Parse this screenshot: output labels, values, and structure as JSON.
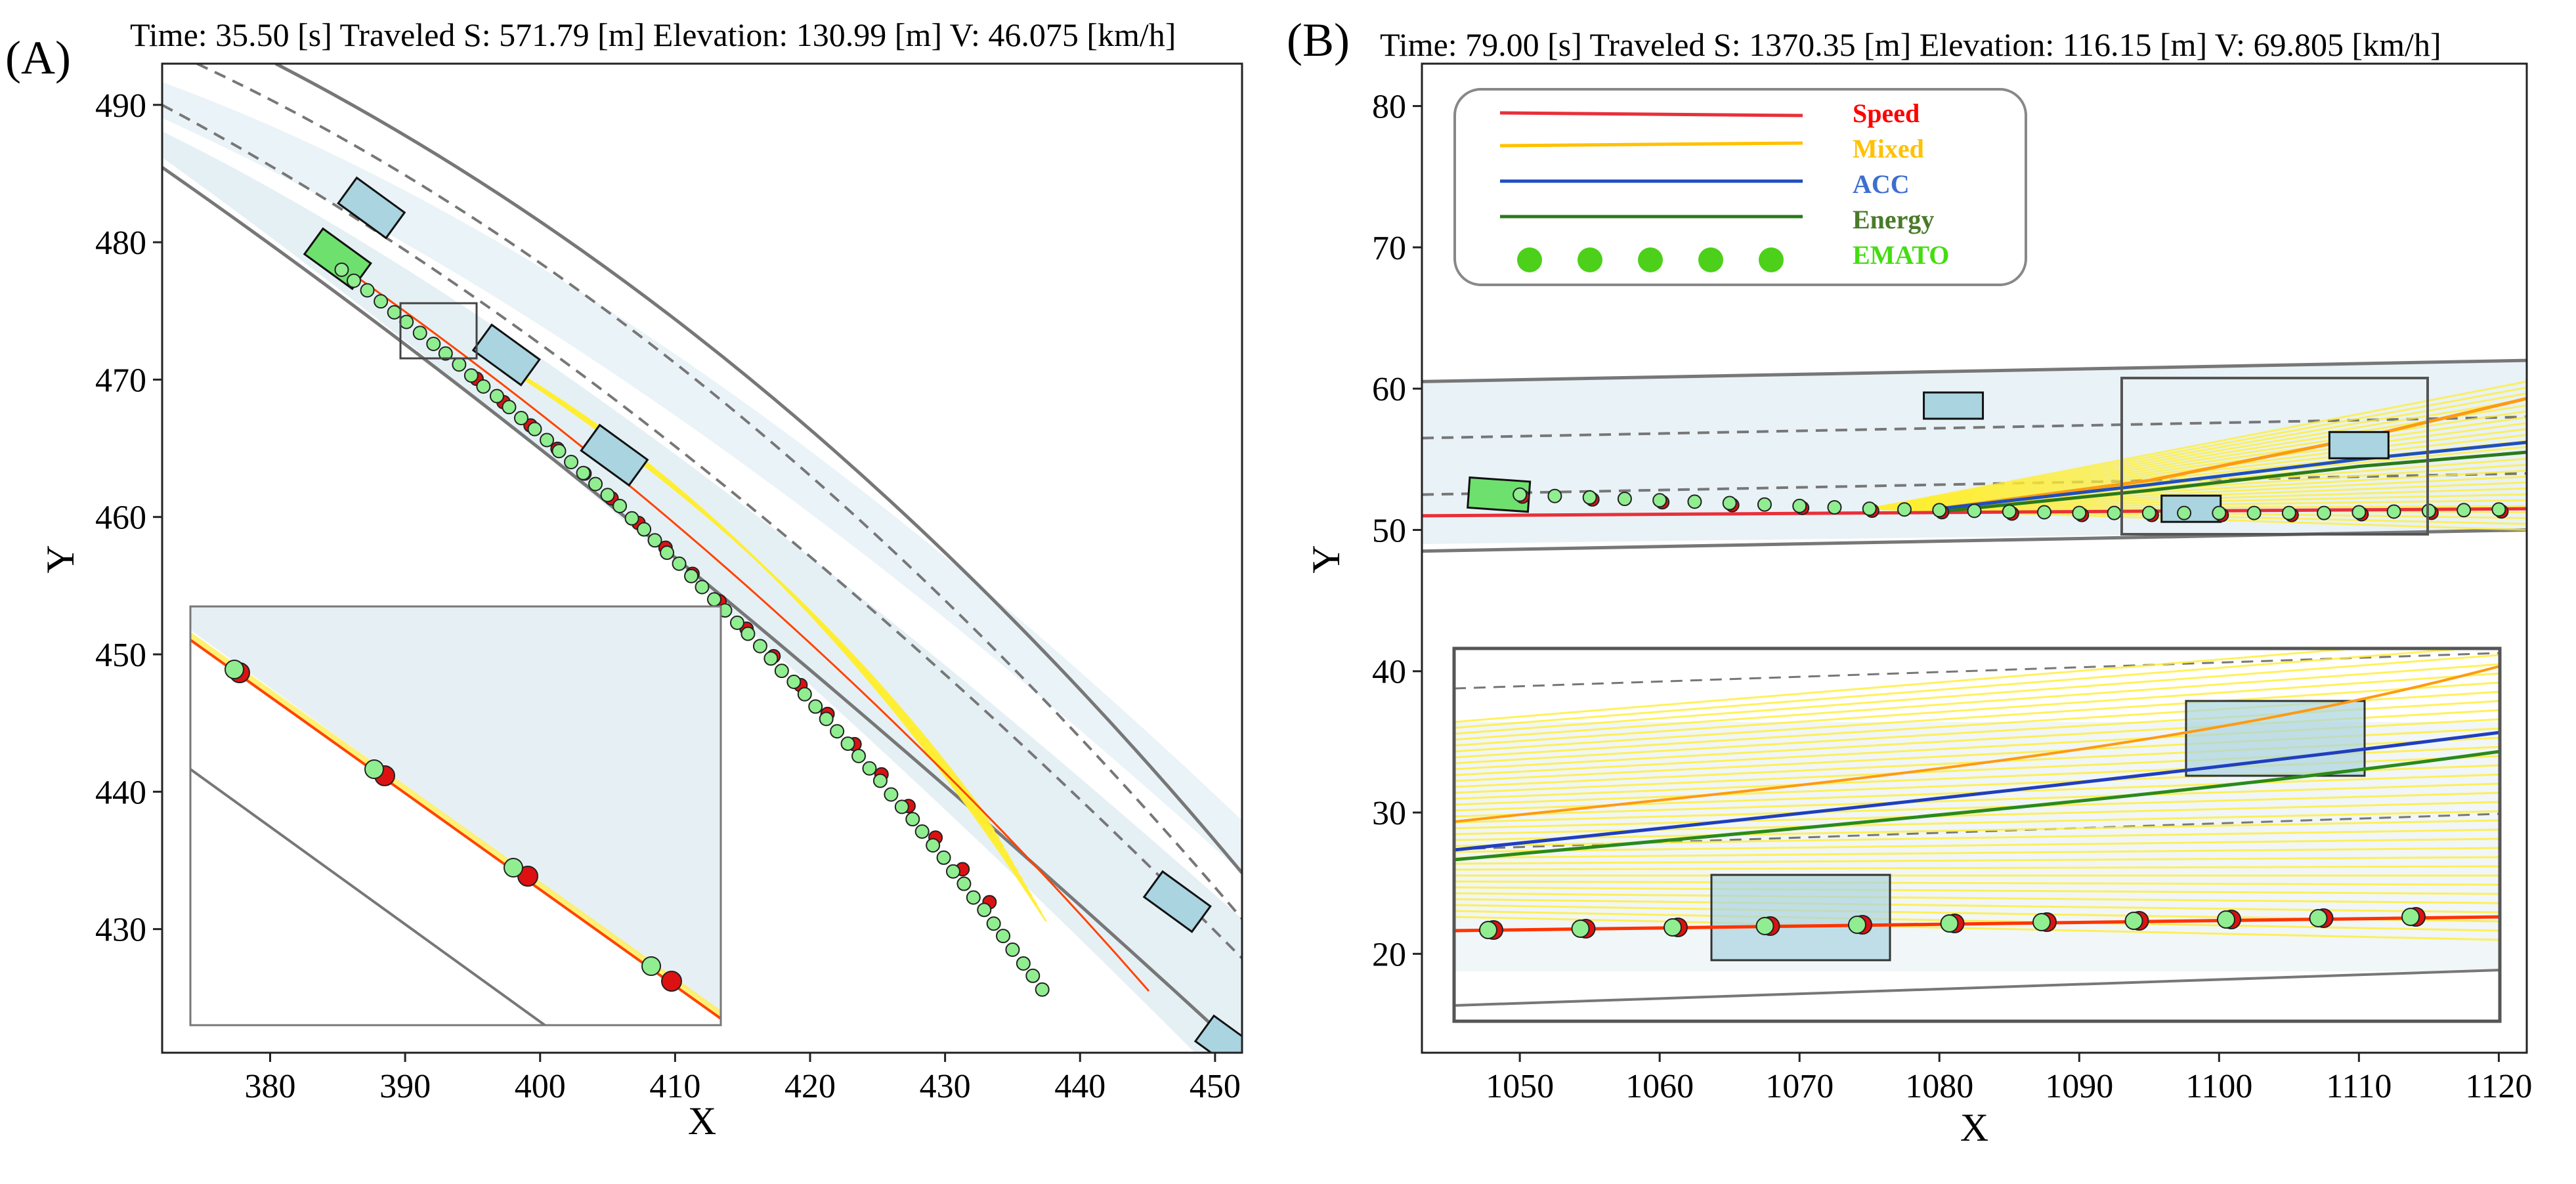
{
  "panels": [
    {
      "label": "(A)",
      "header": "Time: 35.50 [s]   Traveled S: 571.79 [m]   Elevation: 130.99 [m]   V: 46.075 [km/h]"
    },
    {
      "label": "(B)",
      "header": "Time: 79.00 [s]   Traveled S: 1370.35 [m]   Elevation: 116.15 [m]   V: 69.805 [km/h]"
    }
  ],
  "legend": {
    "items": [
      {
        "label": "Speed",
        "color": "#e8303a",
        "text_color": "#ff0000",
        "kind": "line"
      },
      {
        "label": "Mixed",
        "color": "#ffc100",
        "text_color": "#ffc100",
        "kind": "line"
      },
      {
        "label": "ACC",
        "color": "#1f4fbf",
        "text_color": "#3d6fd0",
        "kind": "line"
      },
      {
        "label": "Energy",
        "color": "#2a7a1a",
        "text_color": "#4a7a2a",
        "kind": "line"
      },
      {
        "label": "EMATO",
        "color": "#4cd01a",
        "text_color": "#44dd11",
        "kind": "marker"
      }
    ]
  },
  "chart_data": [
    {
      "type": "scatter",
      "panel": "A",
      "title": "Time: 35.50 [s]   Traveled S: 571.79 [m]   Elevation: 130.99 [m]   V: 46.075 [km/h]",
      "xlabel": "X",
      "ylabel": "Y",
      "xlim": [
        372,
        452
      ],
      "ylim": [
        421,
        493
      ],
      "xticks": [
        380,
        390,
        400,
        410,
        420,
        430,
        440,
        450
      ],
      "yticks": [
        430,
        440,
        450,
        460,
        470,
        480,
        490
      ],
      "series": [
        {
          "name": "EMATO",
          "marker": "circle",
          "color": "#90ee90",
          "points": [
            [
              385.3,
              478.0
            ],
            [
              386.2,
              477.2
            ],
            [
              387.2,
              476.5
            ],
            [
              388.2,
              475.7
            ],
            [
              389.2,
              474.9
            ],
            [
              390.1,
              474.2
            ],
            [
              391.1,
              473.4
            ],
            [
              392.1,
              472.6
            ],
            [
              393.0,
              471.9
            ],
            [
              394.0,
              471.1
            ],
            [
              394.9,
              470.3
            ],
            [
              395.8,
              469.5
            ],
            [
              396.8,
              468.8
            ],
            [
              397.7,
              468.0
            ],
            [
              398.6,
              467.2
            ],
            [
              399.6,
              466.4
            ],
            [
              400.5,
              465.6
            ],
            [
              401.4,
              464.8
            ],
            [
              402.3,
              464.0
            ],
            [
              403.2,
              463.2
            ],
            [
              404.1,
              462.4
            ],
            [
              405.0,
              461.6
            ],
            [
              405.9,
              460.8
            ],
            [
              406.8,
              459.9
            ],
            [
              407.7,
              459.1
            ],
            [
              408.5,
              458.3
            ],
            [
              409.4,
              457.4
            ],
            [
              410.3,
              456.6
            ],
            [
              411.2,
              455.7
            ],
            [
              412.0,
              454.9
            ],
            [
              412.9,
              454.0
            ],
            [
              413.7,
              453.2
            ],
            [
              414.6,
              452.3
            ],
            [
              415.4,
              451.5
            ],
            [
              416.3,
              450.6
            ],
            [
              417.1,
              449.7
            ],
            [
              417.9,
              448.8
            ],
            [
              418.8,
              448.0
            ],
            [
              419.6,
              447.1
            ],
            [
              420.4,
              446.2
            ],
            [
              421.2,
              445.3
            ],
            [
              422.0,
              444.4
            ],
            [
              422.8,
              443.5
            ],
            [
              423.6,
              442.6
            ],
            [
              424.4,
              441.7
            ],
            [
              425.2,
              440.8
            ],
            [
              426.0,
              439.8
            ],
            [
              426.8,
              438.9
            ],
            [
              427.6,
              438.0
            ],
            [
              428.3,
              437.1
            ],
            [
              429.1,
              436.1
            ],
            [
              429.9,
              435.2
            ],
            [
              430.6,
              434.2
            ],
            [
              431.4,
              433.3
            ],
            [
              432.1,
              432.3
            ],
            [
              432.9,
              431.4
            ],
            [
              433.6,
              430.4
            ],
            [
              434.3,
              429.5
            ],
            [
              435.0,
              428.5
            ],
            [
              435.8,
              427.5
            ],
            [
              436.5,
              426.6
            ],
            [
              437.2,
              425.6
            ]
          ]
        },
        {
          "name": "Speed",
          "marker": "circle",
          "color": "#dd1111",
          "points": [
            [
              395.0,
              470.3
            ],
            [
              397.0,
              468.6
            ],
            [
              399.0,
              466.9
            ],
            [
              401.0,
              465.2
            ],
            [
              403.0,
              463.4
            ],
            [
              405.0,
              461.6
            ],
            [
              407.0,
              459.8
            ],
            [
              409.0,
              458.0
            ],
            [
              411.0,
              456.1
            ],
            [
              413.0,
              454.1
            ],
            [
              415.0,
              452.1
            ],
            [
              417.0,
              450.1
            ],
            [
              419.0,
              448.0
            ],
            [
              421.0,
              445.9
            ],
            [
              423.0,
              443.7
            ],
            [
              425.0,
              441.5
            ],
            [
              427.0,
              439.2
            ],
            [
              429.0,
              436.9
            ],
            [
              431.0,
              434.6
            ],
            [
              433.0,
              432.2
            ]
          ]
        }
      ],
      "vehicles": [
        {
          "kind": "ego",
          "x": 385.0,
          "y": 478.8
        },
        {
          "kind": "other",
          "x": 387.5,
          "y": 482.5
        },
        {
          "kind": "other",
          "x": 397.5,
          "y": 471.8
        },
        {
          "kind": "other",
          "x": 405.5,
          "y": 464.5
        },
        {
          "kind": "other",
          "x": 447.2,
          "y": 432.0
        },
        {
          "kind": "other",
          "x": 451.0,
          "y": 421.5
        }
      ],
      "inset": {
        "xlim": [
          390,
          395
        ],
        "ylim": [
          471,
          475
        ]
      }
    },
    {
      "type": "line",
      "panel": "B",
      "title": "Time: 79.00 [s]   Traveled S: 1370.35 [m]   Elevation: 116.15 [m]   V: 69.805 [km/h]",
      "xlabel": "X",
      "ylabel": "Y",
      "xlim": [
        1043,
        1122
      ],
      "ylim": [
        13,
        83
      ],
      "xticks": [
        1050,
        1060,
        1070,
        1080,
        1090,
        1100,
        1110,
        1120
      ],
      "yticks": [
        20,
        30,
        40,
        50,
        60,
        70,
        80
      ],
      "series": [
        {
          "name": "Speed",
          "color": "#e8303a",
          "x": [
            1043,
            1122
          ],
          "y": [
            51.0,
            51.5
          ]
        },
        {
          "name": "Mixed",
          "color": "#ff9a10",
          "x": [
            1080,
            1095,
            1110,
            1122
          ],
          "y": [
            51.5,
            53.5,
            56.5,
            59.3
          ]
        },
        {
          "name": "ACC",
          "color": "#1f4fbf",
          "x": [
            1080,
            1095,
            1110,
            1122
          ],
          "y": [
            51.5,
            53.2,
            55.0,
            56.2
          ]
        },
        {
          "name": "Energy",
          "color": "#2a7a1a",
          "x": [
            1080,
            1095,
            1110,
            1122
          ],
          "y": [
            51.3,
            52.8,
            54.5,
            55.5
          ]
        },
        {
          "name": "EMATO",
          "marker": "circle",
          "color": "#90ee90",
          "x": [
            1050,
            1052.5,
            1055,
            1057.5,
            1060,
            1062.5,
            1065,
            1067.5,
            1070,
            1072.5,
            1075,
            1077.5,
            1080,
            1082.5,
            1085,
            1087.5,
            1090,
            1092.5,
            1095,
            1097.5,
            1100,
            1102.5,
            1105,
            1107.5,
            1110,
            1112.5,
            1115,
            1117.5,
            1120
          ],
          "y": [
            52.5,
            52.4,
            52.3,
            52.2,
            52.1,
            52.0,
            51.9,
            51.8,
            51.7,
            51.6,
            51.5,
            51.45,
            51.4,
            51.35,
            51.3,
            51.25,
            51.2,
            51.2,
            51.2,
            51.2,
            51.2,
            51.2,
            51.2,
            51.2,
            51.25,
            51.3,
            51.35,
            51.4,
            51.45
          ]
        }
      ],
      "vehicles": [
        {
          "kind": "ego",
          "x": 1048.5,
          "y": 52.5
        },
        {
          "kind": "other",
          "x": 1081.0,
          "y": 58.8
        },
        {
          "kind": "other",
          "x": 1110.0,
          "y": 56.0
        },
        {
          "kind": "other",
          "x": 1098.0,
          "y": 51.5
        }
      ],
      "inset": {
        "xlim": [
          1097,
          1117
        ],
        "ylim": [
          48.5,
          60
        ]
      }
    }
  ]
}
